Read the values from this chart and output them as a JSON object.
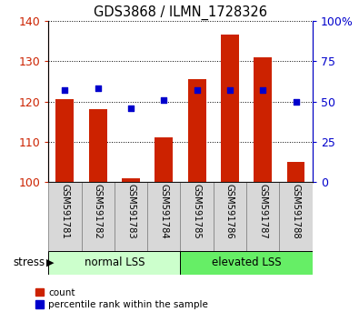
{
  "title": "GDS3868 / ILMN_1728326",
  "samples": [
    "GSM591781",
    "GSM591782",
    "GSM591783",
    "GSM591784",
    "GSM591785",
    "GSM591786",
    "GSM591787",
    "GSM591788"
  ],
  "count_values": [
    120.5,
    118.0,
    101.0,
    111.0,
    125.5,
    136.5,
    131.0,
    105.0
  ],
  "percentile_values": [
    57,
    58,
    46,
    51,
    57,
    57,
    57,
    50
  ],
  "groups": [
    {
      "label": "normal LSS",
      "color": "#ccffcc",
      "start": 0,
      "end": 3
    },
    {
      "label": "elevated LSS",
      "color": "#66ee66",
      "start": 4,
      "end": 7
    }
  ],
  "group_label": "stress",
  "ylim_left": [
    100,
    140
  ],
  "ylim_right": [
    0,
    100
  ],
  "yticks_left": [
    100,
    110,
    120,
    130,
    140
  ],
  "yticks_right": [
    0,
    25,
    50,
    75,
    100
  ],
  "bar_color": "#cc2200",
  "dot_color": "#0000cc",
  "bar_bottom": 100,
  "bar_width": 0.55,
  "label_color_left": "#cc2200",
  "label_color_right": "#0000cc",
  "cell_facecolor": "#d8d8d8",
  "cell_edgecolor": "#888888"
}
